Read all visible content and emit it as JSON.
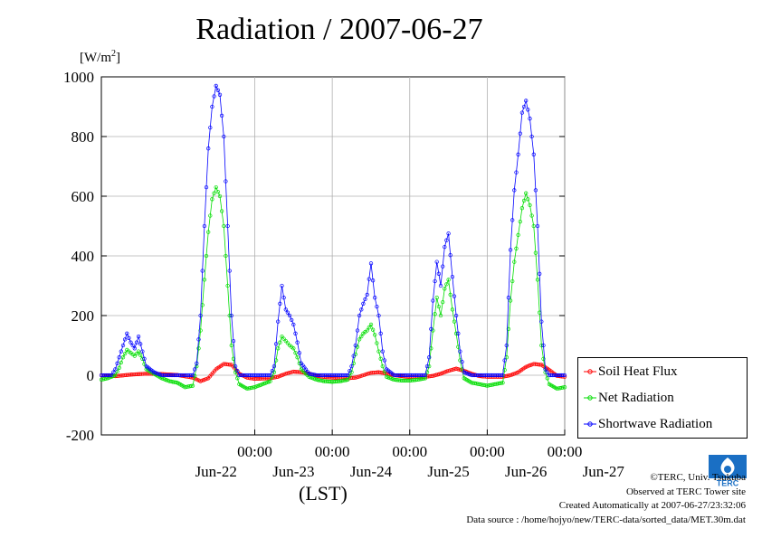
{
  "title": "Radiation / 2007-06-27",
  "unit_label": "[W/m",
  "unit_sup": "2",
  "unit_close": "]",
  "x_axis_label": "(LST)",
  "credits": {
    "copyright": "©TERC, Univ. Tsukuba",
    "observed": "Observed at TERC Tower site",
    "created": "Created Automatically at 2007-06-27/23:32:06",
    "source": "Data source : /home/hojyo/new/TERC-data/sorted_data/MET.30m.dat"
  },
  "logo_text": "TERC",
  "colors": {
    "soil": "#ff0000",
    "net": "#00dd00",
    "shortwave": "#0000ff"
  },
  "chart_data": {
    "type": "line",
    "title": "Radiation / 2007-06-27",
    "ylabel": "[W/m2]",
    "xlabel": "(LST)",
    "ylim": [
      -200,
      1000
    ],
    "yticks": [
      -200,
      0,
      200,
      400,
      600,
      800,
      1000
    ],
    "xlim_days": [
      -0.98,
      5.0
    ],
    "xtick_days": [
      1,
      2,
      3,
      4,
      5
    ],
    "xtick_time_labels": [
      "00:00",
      "00:00",
      "00:00",
      "00:00",
      "00:00"
    ],
    "day_labels": [
      "Jun-22",
      "Jun-23",
      "Jun-24",
      "Jun-25",
      "Jun-26",
      "Jun-27"
    ],
    "grid": true,
    "legend_position": "bottom-right",
    "series": [
      {
        "name": "Soil Heat Flux",
        "color": "#ff0000",
        "points": [
          [
            -0.98,
            0
          ],
          [
            -0.8,
            -3
          ],
          [
            -0.6,
            2
          ],
          [
            -0.4,
            5
          ],
          [
            -0.2,
            4
          ],
          [
            0,
            1
          ],
          [
            0.2,
            -8
          ],
          [
            0.3,
            -20
          ],
          [
            0.4,
            -10
          ],
          [
            0.5,
            20
          ],
          [
            0.6,
            38
          ],
          [
            0.7,
            35
          ],
          [
            0.8,
            5
          ],
          [
            0.9,
            -8
          ],
          [
            1.0,
            -12
          ],
          [
            1.2,
            -10
          ],
          [
            1.3,
            -5
          ],
          [
            1.4,
            5
          ],
          [
            1.5,
            12
          ],
          [
            1.6,
            10
          ],
          [
            1.7,
            6
          ],
          [
            1.8,
            -2
          ],
          [
            1.9,
            -6
          ],
          [
            2.0,
            -8
          ],
          [
            2.2,
            -10
          ],
          [
            2.3,
            -8
          ],
          [
            2.4,
            0
          ],
          [
            2.5,
            8
          ],
          [
            2.6,
            10
          ],
          [
            2.7,
            6
          ],
          [
            2.8,
            0
          ],
          [
            3.0,
            -6
          ],
          [
            3.2,
            -5
          ],
          [
            3.3,
            -2
          ],
          [
            3.4,
            5
          ],
          [
            3.5,
            15
          ],
          [
            3.6,
            22
          ],
          [
            3.7,
            15
          ],
          [
            3.8,
            5
          ],
          [
            3.9,
            -3
          ],
          [
            4.0,
            -5
          ],
          [
            4.2,
            -5
          ],
          [
            4.3,
            0
          ],
          [
            4.4,
            10
          ],
          [
            4.5,
            28
          ],
          [
            4.6,
            38
          ],
          [
            4.7,
            35
          ],
          [
            4.8,
            18
          ],
          [
            4.9,
            -2
          ],
          [
            5.0,
            -5
          ]
        ]
      },
      {
        "name": "Net Radiation",
        "color": "#00dd00",
        "points": [
          [
            -0.98,
            -15
          ],
          [
            -0.9,
            -10
          ],
          [
            -0.8,
            0
          ],
          [
            -0.75,
            25
          ],
          [
            -0.7,
            60
          ],
          [
            -0.65,
            85
          ],
          [
            -0.6,
            75
          ],
          [
            -0.55,
            65
          ],
          [
            -0.5,
            80
          ],
          [
            -0.45,
            55
          ],
          [
            -0.4,
            20
          ],
          [
            -0.3,
            5
          ],
          [
            -0.2,
            -10
          ],
          [
            -0.1,
            -20
          ],
          [
            0.0,
            -25
          ],
          [
            0.1,
            -40
          ],
          [
            0.2,
            -35
          ],
          [
            0.25,
            30
          ],
          [
            0.3,
            150
          ],
          [
            0.35,
            320
          ],
          [
            0.4,
            480
          ],
          [
            0.45,
            590
          ],
          [
            0.5,
            630
          ],
          [
            0.55,
            600
          ],
          [
            0.6,
            500
          ],
          [
            0.65,
            300
          ],
          [
            0.7,
            100
          ],
          [
            0.75,
            10
          ],
          [
            0.8,
            -30
          ],
          [
            0.9,
            -45
          ],
          [
            1.0,
            -40
          ],
          [
            1.1,
            -30
          ],
          [
            1.2,
            -20
          ],
          [
            1.25,
            10
          ],
          [
            1.3,
            90
          ],
          [
            1.35,
            130
          ],
          [
            1.4,
            115
          ],
          [
            1.45,
            100
          ],
          [
            1.5,
            90
          ],
          [
            1.55,
            60
          ],
          [
            1.6,
            20
          ],
          [
            1.7,
            -5
          ],
          [
            1.8,
            -15
          ],
          [
            1.9,
            -20
          ],
          [
            2.0,
            -22
          ],
          [
            2.1,
            -20
          ],
          [
            2.2,
            -15
          ],
          [
            2.25,
            10
          ],
          [
            2.3,
            70
          ],
          [
            2.35,
            120
          ],
          [
            2.4,
            140
          ],
          [
            2.45,
            150
          ],
          [
            2.5,
            170
          ],
          [
            2.55,
            135
          ],
          [
            2.6,
            80
          ],
          [
            2.65,
            30
          ],
          [
            2.7,
            -5
          ],
          [
            2.8,
            -15
          ],
          [
            2.9,
            -18
          ],
          [
            3.0,
            -18
          ],
          [
            3.1,
            -15
          ],
          [
            3.2,
            -10
          ],
          [
            3.25,
            30
          ],
          [
            3.3,
            150
          ],
          [
            3.35,
            260
          ],
          [
            3.4,
            200
          ],
          [
            3.45,
            290
          ],
          [
            3.5,
            320
          ],
          [
            3.55,
            220
          ],
          [
            3.6,
            140
          ],
          [
            3.65,
            50
          ],
          [
            3.7,
            -10
          ],
          [
            3.8,
            -25
          ],
          [
            3.9,
            -30
          ],
          [
            4.0,
            -35
          ],
          [
            4.1,
            -30
          ],
          [
            4.2,
            -25
          ],
          [
            4.25,
            60
          ],
          [
            4.3,
            250
          ],
          [
            4.35,
            380
          ],
          [
            4.4,
            470
          ],
          [
            4.45,
            560
          ],
          [
            4.5,
            610
          ],
          [
            4.55,
            570
          ],
          [
            4.6,
            500
          ],
          [
            4.65,
            320
          ],
          [
            4.7,
            100
          ],
          [
            4.75,
            10
          ],
          [
            4.8,
            -30
          ],
          [
            4.9,
            -45
          ],
          [
            5.0,
            -40
          ]
        ]
      },
      {
        "name": "Shortwave Radiation",
        "color": "#0000ff",
        "points": [
          [
            -0.98,
            0
          ],
          [
            -0.85,
            0
          ],
          [
            -0.8,
            20
          ],
          [
            -0.75,
            60
          ],
          [
            -0.7,
            100
          ],
          [
            -0.65,
            140
          ],
          [
            -0.6,
            110
          ],
          [
            -0.55,
            90
          ],
          [
            -0.5,
            130
          ],
          [
            -0.45,
            80
          ],
          [
            -0.4,
            30
          ],
          [
            -0.3,
            10
          ],
          [
            -0.2,
            0
          ],
          [
            0.0,
            0
          ],
          [
            0.2,
            0
          ],
          [
            0.25,
            40
          ],
          [
            0.3,
            200
          ],
          [
            0.35,
            500
          ],
          [
            0.4,
            760
          ],
          [
            0.45,
            900
          ],
          [
            0.5,
            970
          ],
          [
            0.55,
            940
          ],
          [
            0.6,
            800
          ],
          [
            0.65,
            500
          ],
          [
            0.7,
            200
          ],
          [
            0.75,
            30
          ],
          [
            0.8,
            0
          ],
          [
            1.0,
            0
          ],
          [
            1.2,
            0
          ],
          [
            1.25,
            30
          ],
          [
            1.3,
            180
          ],
          [
            1.35,
            300
          ],
          [
            1.4,
            220
          ],
          [
            1.45,
            200
          ],
          [
            1.5,
            170
          ],
          [
            1.55,
            110
          ],
          [
            1.6,
            40
          ],
          [
            1.7,
            5
          ],
          [
            1.8,
            0
          ],
          [
            2.0,
            0
          ],
          [
            2.2,
            0
          ],
          [
            2.25,
            30
          ],
          [
            2.3,
            100
          ],
          [
            2.35,
            200
          ],
          [
            2.4,
            240
          ],
          [
            2.45,
            270
          ],
          [
            2.5,
            375
          ],
          [
            2.55,
            260
          ],
          [
            2.6,
            200
          ],
          [
            2.65,
            80
          ],
          [
            2.7,
            20
          ],
          [
            2.8,
            0
          ],
          [
            3.0,
            0
          ],
          [
            3.2,
            0
          ],
          [
            3.25,
            60
          ],
          [
            3.3,
            250
          ],
          [
            3.35,
            380
          ],
          [
            3.4,
            300
          ],
          [
            3.45,
            430
          ],
          [
            3.5,
            475
          ],
          [
            3.55,
            330
          ],
          [
            3.6,
            200
          ],
          [
            3.65,
            80
          ],
          [
            3.7,
            10
          ],
          [
            3.8,
            0
          ],
          [
            4.0,
            0
          ],
          [
            4.2,
            0
          ],
          [
            4.25,
            100
          ],
          [
            4.3,
            420
          ],
          [
            4.35,
            620
          ],
          [
            4.4,
            740
          ],
          [
            4.45,
            880
          ],
          [
            4.5,
            920
          ],
          [
            4.55,
            860
          ],
          [
            4.6,
            740
          ],
          [
            4.65,
            500
          ],
          [
            4.7,
            180
          ],
          [
            4.75,
            20
          ],
          [
            4.8,
            0
          ],
          [
            5.0,
            0
          ]
        ]
      }
    ]
  }
}
